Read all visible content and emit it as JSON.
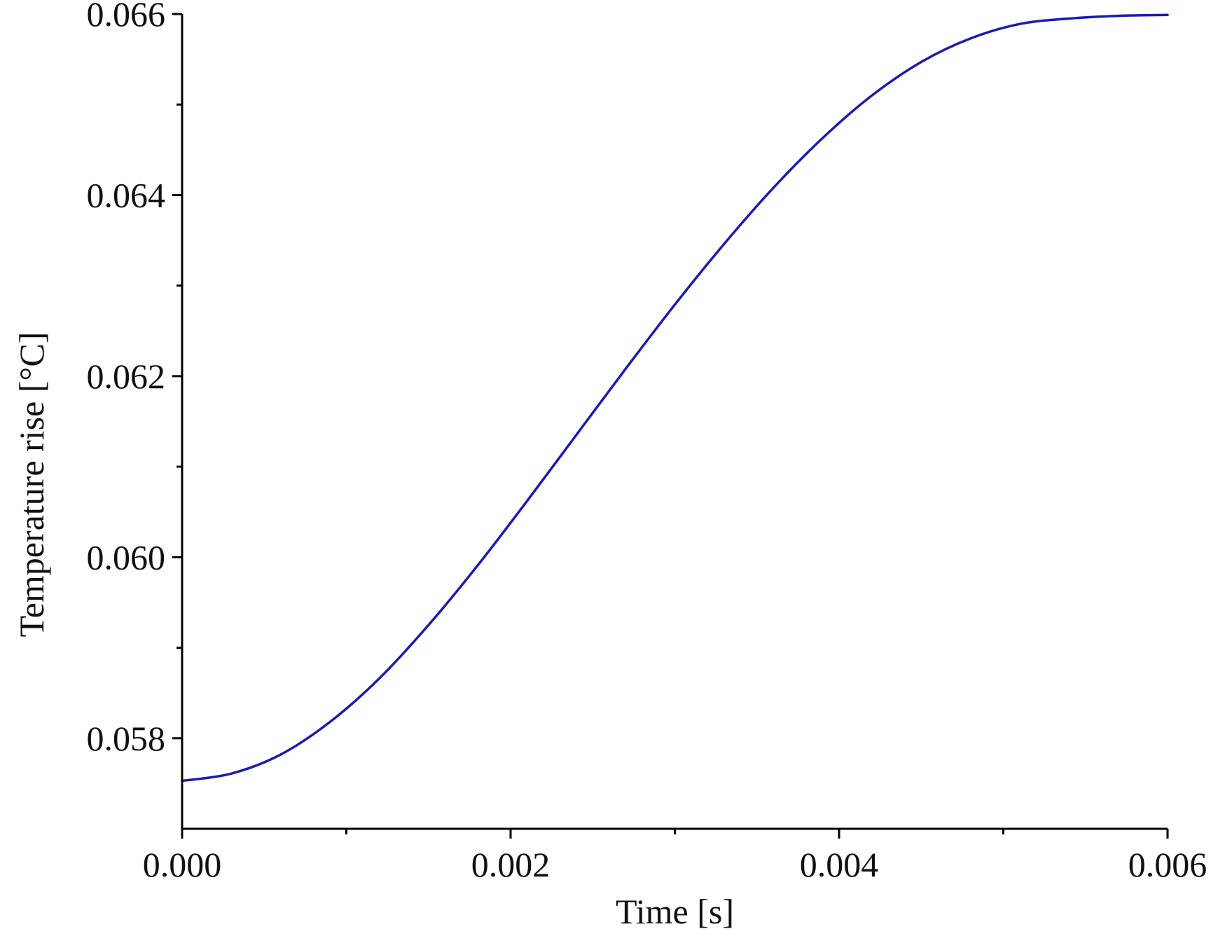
{
  "chart_data": {
    "type": "line",
    "title": "",
    "xlabel": "Time [s]",
    "ylabel": "Temperature rise [°C]",
    "xlim": [
      0.0,
      0.006
    ],
    "ylim": [
      0.057,
      0.066
    ],
    "xticks": [
      0.0,
      0.002,
      0.004,
      0.006
    ],
    "xtick_labels": [
      "0.000",
      "0.002",
      "0.004",
      "0.006"
    ],
    "xminor_ticks": [
      0.001,
      0.003,
      0.005
    ],
    "yticks": [
      0.058,
      0.06,
      0.062,
      0.064,
      0.066
    ],
    "ytick_labels": [
      "0.058",
      "0.060",
      "0.062",
      "0.064",
      "0.066"
    ],
    "yminor_ticks": [
      0.059,
      0.061,
      0.063,
      0.065
    ],
    "grid": false,
    "legend": "none",
    "series": [
      {
        "color": "#1a1ab8",
        "x": [
          0.0,
          0.0003,
          0.0006,
          0.0009,
          0.0012,
          0.0015,
          0.0018,
          0.0021,
          0.0024,
          0.0027,
          0.003,
          0.0033,
          0.0036,
          0.0039,
          0.0042,
          0.0045,
          0.0048,
          0.0051,
          0.0054,
          0.0057,
          0.006
        ],
        "y": [
          0.05753,
          0.05761,
          0.05782,
          0.05818,
          0.05866,
          0.05925,
          0.05991,
          0.06062,
          0.06135,
          0.06208,
          0.06279,
          0.06346,
          0.06408,
          0.06463,
          0.0651,
          0.06547,
          0.06573,
          0.06589,
          0.06595,
          0.06598,
          0.06599
        ]
      }
    ]
  }
}
